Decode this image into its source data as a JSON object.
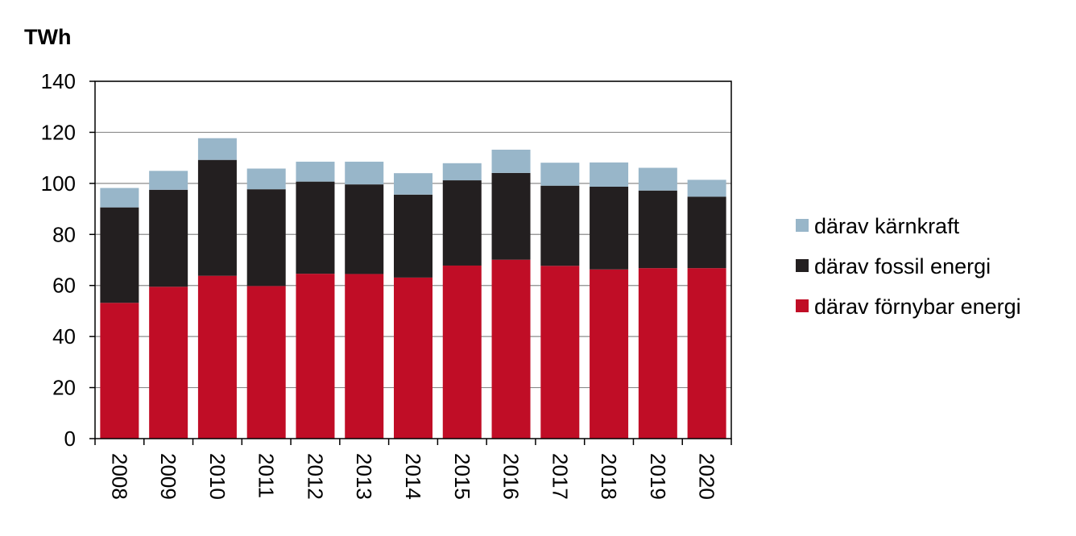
{
  "chart_data": {
    "type": "bar",
    "stacked": true,
    "y_unit_label": "TWh",
    "categories": [
      "2008",
      "2009",
      "2010",
      "2011",
      "2012",
      "2013",
      "2014",
      "2015",
      "2016",
      "2017",
      "2018",
      "2019",
      "2020"
    ],
    "series": [
      {
        "name": "därav förnybar energi",
        "color": "#c00d26",
        "values": [
          53.2,
          59.5,
          63.8,
          59.8,
          64.6,
          64.5,
          63.1,
          67.8,
          70.1,
          67.7,
          66.3,
          66.8,
          66.8
        ]
      },
      {
        "name": "därav fossil energi",
        "color": "#231f20",
        "values": [
          37.4,
          38.0,
          45.4,
          37.9,
          36.1,
          35.1,
          32.5,
          33.4,
          34.0,
          31.4,
          32.4,
          30.4,
          28.0
        ]
      },
      {
        "name": "därav kärnkraft",
        "color": "#98b6c9",
        "values": [
          7.6,
          7.4,
          8.5,
          8.1,
          7.8,
          8.9,
          8.4,
          6.7,
          9.1,
          9.0,
          9.5,
          8.9,
          6.6
        ]
      }
    ],
    "ylim": [
      0,
      140
    ],
    "yticks": [
      0,
      20,
      40,
      60,
      80,
      100,
      120,
      140
    ],
    "grid": true,
    "legend_placement": "right",
    "legend_order": [
      "därav kärnkraft",
      "därav fossil energi",
      "därav förnybar energi"
    ],
    "xlabel_rotation": "vertical"
  }
}
